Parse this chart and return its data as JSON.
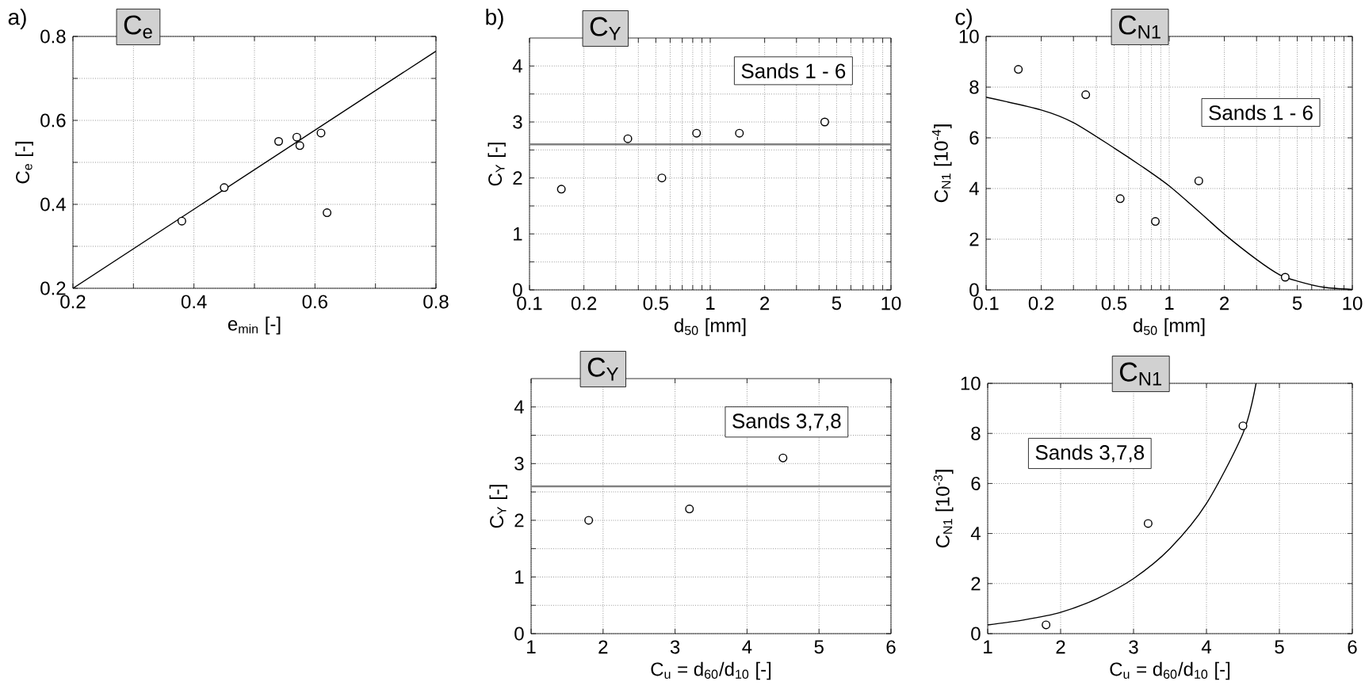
{
  "chart_data": [
    {
      "type": "scatter",
      "title": "C$_{e}$",
      "xlabel": "e$_{min}$ [-]",
      "ylabel": "C$_{e}$ [-]",
      "annotations": [
        "a)"
      ],
      "grid": true,
      "xlim": [
        0.2,
        0.8
      ],
      "ylim": [
        0.2,
        0.8
      ],
      "xticks": [
        0.2,
        {
          "value": 0.3,
          "label": null
        },
        0.4,
        {
          "value": 0.5,
          "label": null
        },
        0.6,
        {
          "value": 0.7,
          "label": null
        },
        0.8
      ],
      "yticks": [
        0.2,
        {
          "value": 0.3,
          "label": null
        },
        0.4,
        {
          "value": 0.5,
          "label": null
        },
        0.6,
        {
          "value": 0.7,
          "label": null
        },
        0.8
      ],
      "series": [
        {
          "marker": "circle",
          "color": "#000000",
          "x": [
            0.38,
            0.45,
            0.54,
            0.57,
            0.575,
            0.61,
            0.62
          ],
          "values": [
            0.36,
            0.44,
            0.55,
            0.56,
            0.54,
            0.57,
            0.38
          ]
        },
        {
          "type": "line",
          "marker": "none",
          "color": "#000000",
          "x": [
            0.2,
            0.8
          ],
          "values": [
            0.2,
            0.765
          ]
        }
      ]
    },
    {
      "type": "scatter",
      "title": "C$_{Y}$",
      "xlabel": "d$_{50}$ [mm]",
      "ylabel": "C$_{Y}$ [-]",
      "annotations": [
        "b)",
        "Sands 1 - 6"
      ],
      "grid": true,
      "log": "x",
      "xlim": [
        0.1,
        10
      ],
      "ylim": [
        0,
        4.5
      ],
      "xticks": [
        0.1,
        0.2,
        {
          "value": 0.3,
          "label": null
        },
        {
          "value": 0.4,
          "label": null
        },
        0.5,
        {
          "value": 0.6,
          "label": null
        },
        {
          "value": 0.7,
          "label": null
        },
        {
          "value": 0.8,
          "label": null
        },
        {
          "value": 0.9,
          "label": null
        },
        1,
        2,
        {
          "value": 3,
          "label": null
        },
        {
          "value": 4,
          "label": null
        },
        5,
        {
          "value": 6,
          "label": null
        },
        {
          "value": 7,
          "label": null
        },
        {
          "value": 8,
          "label": null
        },
        {
          "value": 9,
          "label": null
        },
        10
      ],
      "yticks": [
        0,
        {
          "value": 0.5,
          "label": null
        },
        1,
        {
          "value": 1.5,
          "label": null
        },
        2,
        {
          "value": 2.5,
          "label": null
        },
        3,
        {
          "value": 3.5,
          "label": null
        },
        4
      ],
      "ref_lines": [
        {
          "axis": "y",
          "value": 2.6,
          "color": "#808080"
        }
      ],
      "series": [
        {
          "marker": "circle",
          "color": "#000000",
          "x": [
            0.15,
            0.35,
            0.54,
            0.84,
            1.45,
            4.3
          ],
          "values": [
            1.8,
            2.7,
            2.0,
            2.8,
            2.8,
            3.0
          ]
        }
      ]
    },
    {
      "type": "scatter",
      "title": "C$_{N1}$",
      "xlabel": "d$_{50}$ [mm]",
      "ylabel": "C$_{N1}$ [10$^{-4}$]",
      "annotations": [
        "c)",
        "Sands 1 - 6"
      ],
      "grid": true,
      "log": "x",
      "xlim": [
        0.1,
        10
      ],
      "ylim": [
        0,
        10
      ],
      "xticks": [
        0.1,
        0.2,
        {
          "value": 0.3,
          "label": null
        },
        {
          "value": 0.4,
          "label": null
        },
        0.5,
        {
          "value": 0.6,
          "label": null
        },
        {
          "value": 0.7,
          "label": null
        },
        {
          "value": 0.8,
          "label": null
        },
        {
          "value": 0.9,
          "label": null
        },
        1,
        2,
        {
          "value": 3,
          "label": null
        },
        {
          "value": 4,
          "label": null
        },
        5,
        {
          "value": 6,
          "label": null
        },
        {
          "value": 7,
          "label": null
        },
        {
          "value": 8,
          "label": null
        },
        {
          "value": 9,
          "label": null
        },
        10
      ],
      "yticks": [
        0,
        2,
        4,
        6,
        8,
        10
      ],
      "series": [
        {
          "marker": "circle",
          "color": "#000000",
          "x": [
            0.15,
            0.35,
            0.54,
            0.84,
            1.45,
            4.3
          ],
          "values": [
            8.7,
            7.7,
            3.6,
            2.7,
            4.3,
            0.5
          ]
        },
        {
          "type": "line",
          "marker": "none",
          "color": "#000000",
          "x": [
            0.1,
            0.2,
            0.3,
            0.5,
            0.7,
            1,
            1.5,
            2,
            3,
            4,
            5,
            7,
            10
          ],
          "values": [
            7.6,
            7.1,
            6.6,
            5.6,
            4.9,
            4.1,
            3.0,
            2.2,
            1.2,
            0.6,
            0.35,
            0.1,
            0.02
          ]
        }
      ]
    },
    {
      "type": "scatter",
      "title": "C$_{Y}$",
      "xlabel": "C$_{u}$ = d$_{60}$/d$_{10}$ [-]",
      "ylabel": "C$_{Y}$ [-]",
      "annotations": [
        "Sands 3,7,8"
      ],
      "grid": true,
      "xlim": [
        1,
        6
      ],
      "ylim": [
        0,
        4.5
      ],
      "xticks": [
        1,
        2,
        3,
        4,
        5,
        6
      ],
      "yticks": [
        0,
        {
          "value": 0.5,
          "label": null
        },
        1,
        {
          "value": 1.5,
          "label": null
        },
        2,
        {
          "value": 2.5,
          "label": null
        },
        3,
        {
          "value": 3.5,
          "label": null
        },
        4
      ],
      "ref_lines": [
        {
          "axis": "y",
          "value": 2.6,
          "color": "#808080"
        }
      ],
      "series": [
        {
          "marker": "circle",
          "color": "#000000",
          "x": [
            1.8,
            3.2,
            4.5
          ],
          "values": [
            2.0,
            2.2,
            3.1
          ]
        }
      ]
    },
    {
      "type": "scatter",
      "title": "C$_{N1}$",
      "xlabel": "C$_{u}$ = d$_{60}$/d$_{10}$ [-]",
      "ylabel": "C$_{N1}$ [10$^{-3}$]",
      "annotations": [
        "Sands 3,7,8"
      ],
      "grid": true,
      "xlim": [
        1,
        6
      ],
      "ylim": [
        0,
        10
      ],
      "xticks": [
        1,
        2,
        3,
        4,
        5,
        6
      ],
      "yticks": [
        0,
        2,
        4,
        6,
        8,
        10
      ],
      "series": [
        {
          "marker": "circle",
          "color": "#000000",
          "x": [
            1.8,
            3.2,
            4.5
          ],
          "values": [
            0.35,
            4.4,
            8.3
          ]
        },
        {
          "type": "line",
          "marker": "none",
          "color": "#000000",
          "x": [
            1,
            1.5,
            2,
            2.5,
            3,
            3.5,
            4,
            4.5,
            4.68
          ],
          "values": [
            0.35,
            0.55,
            0.85,
            1.4,
            2.2,
            3.4,
            5.2,
            8.0,
            10
          ]
        }
      ]
    }
  ]
}
